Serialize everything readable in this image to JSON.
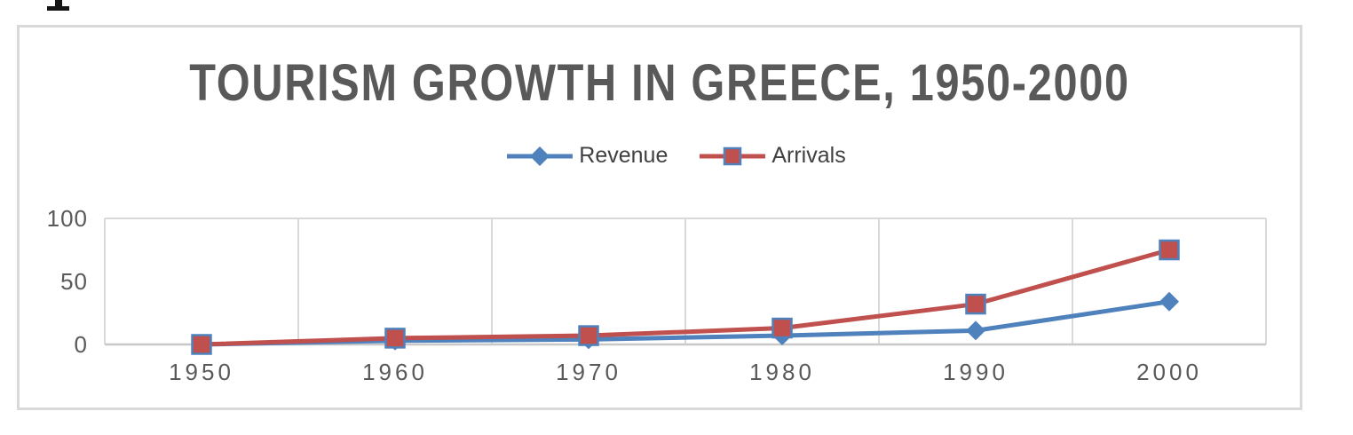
{
  "colors": {
    "background": "#FFFFFF",
    "chart_border": "#D9D9D9",
    "grid": "#D9D9D9",
    "axis_line": "#C8C8C8",
    "title_text": "#595959",
    "tick_text": "#595959",
    "legend_text": "#404040"
  },
  "chart_data": {
    "type": "line",
    "title": "TOURISM GROWTH IN GREECE, 1950-2000",
    "categories": [
      "1950",
      "1960",
      "1970",
      "1980",
      "1990",
      "2000"
    ],
    "series": [
      {
        "name": "Revenue",
        "color": "#4F81BD",
        "marker": "diamond",
        "values": [
          0,
          3,
          4,
          7,
          11,
          34
        ]
      },
      {
        "name": "Arrivals",
        "color": "#C0504D",
        "marker": "square",
        "marker_border": "#4F81BD",
        "values": [
          0,
          5,
          7,
          13,
          32,
          75
        ]
      }
    ],
    "xlabel": "",
    "ylabel": "",
    "ylim": [
      0,
      100
    ],
    "yticks": [
      0,
      50,
      100
    ],
    "grid": {
      "vertical": true,
      "horizontal": false,
      "top_border": true
    },
    "legend_position": "top-center"
  }
}
